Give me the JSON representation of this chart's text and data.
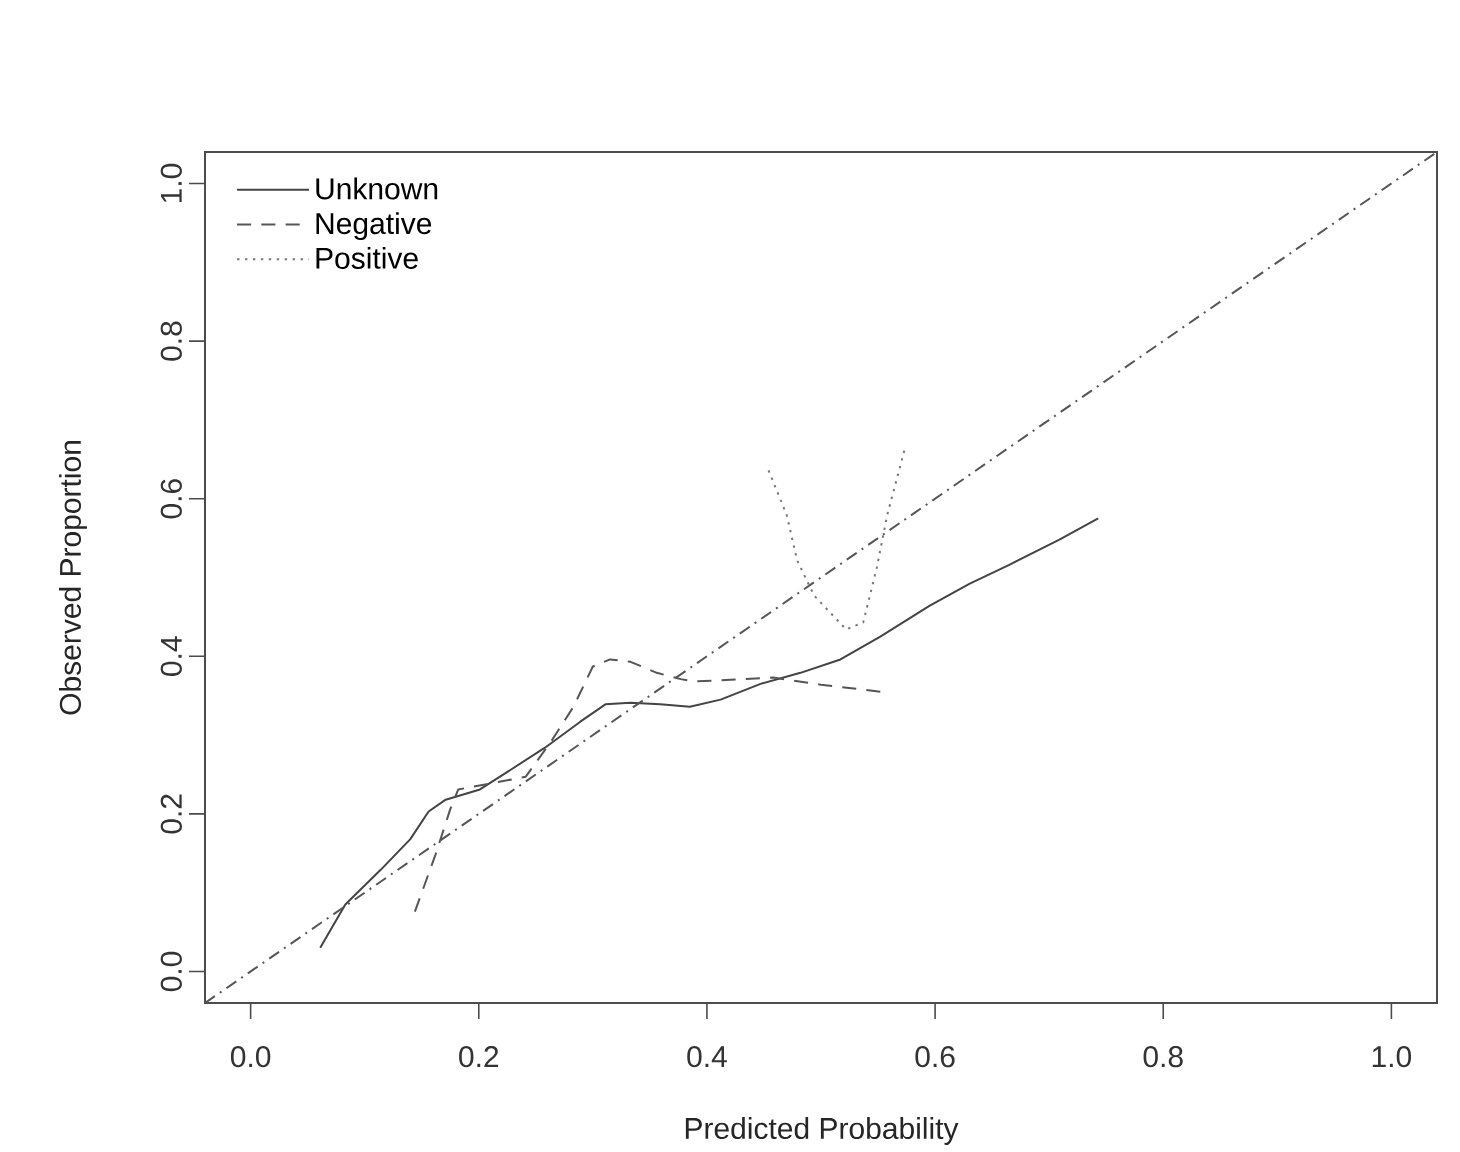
{
  "chart_data": {
    "type": "line",
    "xlabel": "Predicted Probability",
    "ylabel": "Observed Proportion",
    "xlim": [
      -0.04,
      1.04
    ],
    "ylim": [
      -0.04,
      1.04
    ],
    "xticks": [
      {
        "value": 0,
        "label": "0.0"
      },
      0.2,
      0.4,
      0.6,
      0.8,
      {
        "value": 1,
        "label": "1.0"
      }
    ],
    "yticks": [
      {
        "value": 0,
        "label": "0.0"
      },
      0.2,
      0.4,
      0.6,
      0.8,
      {
        "value": 1,
        "label": "1.0"
      }
    ],
    "legend": "top left",
    "grid": false,
    "series": [
      {
        "name": "Unknown",
        "color": "#444444",
        "line_style": "solid",
        "x": [
          0.061,
          0.083,
          0.114,
          0.14,
          0.156,
          0.171,
          0.201,
          0.228,
          0.258,
          0.289,
          0.311,
          0.333,
          0.359,
          0.385,
          0.412,
          0.447,
          0.482,
          0.517,
          0.552,
          0.595,
          0.63,
          0.665,
          0.709,
          0.743
        ],
        "values": [
          0.03,
          0.085,
          0.129,
          0.168,
          0.203,
          0.218,
          0.231,
          0.256,
          0.284,
          0.317,
          0.339,
          0.341,
          0.339,
          0.336,
          0.345,
          0.365,
          0.379,
          0.396,
          0.425,
          0.464,
          0.492,
          0.516,
          0.548,
          0.575
        ]
      },
      {
        "name": "Negative",
        "color": "#555555",
        "line_style": "dashed",
        "x": [
          0.144,
          0.162,
          0.175,
          0.182,
          0.241,
          0.263,
          0.283,
          0.3,
          0.315,
          0.333,
          0.356,
          0.377,
          0.389,
          0.458,
          0.5,
          0.552
        ],
        "values": [
          0.076,
          0.148,
          0.206,
          0.231,
          0.247,
          0.291,
          0.336,
          0.387,
          0.396,
          0.393,
          0.379,
          0.371,
          0.368,
          0.373,
          0.364,
          0.355
        ]
      },
      {
        "name": "Positive",
        "color": "#777777",
        "line_style": "dotted",
        "x": [
          0.454,
          0.47,
          0.479,
          0.494,
          0.522,
          0.537,
          0.549,
          0.558,
          0.573
        ],
        "values": [
          0.636,
          0.579,
          0.522,
          0.477,
          0.434,
          0.443,
          0.513,
          0.579,
          0.661
        ]
      },
      {
        "color": "#555555",
        "line_style": "dashdot",
        "x": [
          -0.04,
          1.04
        ],
        "values": [
          -0.04,
          1.04
        ]
      }
    ]
  }
}
